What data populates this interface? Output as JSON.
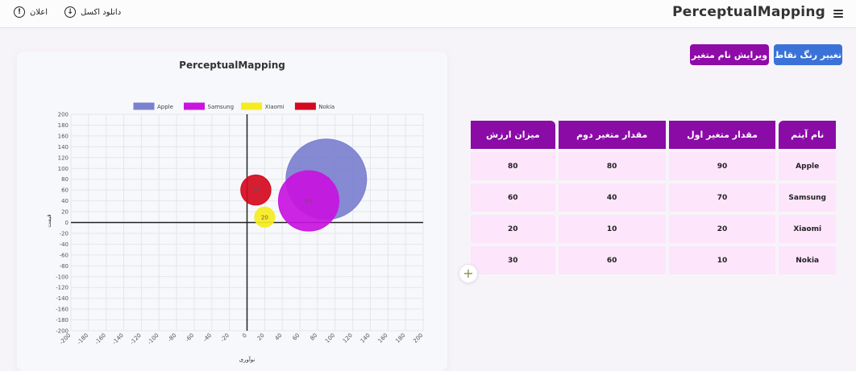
{
  "header": {
    "app_title": "PerceptualMapping",
    "download_label": "دانلود اکسل",
    "announcement_label": "اعلان"
  },
  "toolbar": {
    "change_color_label": "تغییر رنگ نقاط",
    "edit_variable_label": "ویرایش نام متغیر"
  },
  "table": {
    "headers": [
      "نام آیتم",
      "مقدار متغیر اول",
      "مقدار متغیر دوم",
      "میزان ارزش"
    ],
    "rows": [
      [
        "Apple",
        "90",
        "80",
        "80"
      ],
      [
        "Samsung",
        "70",
        "40",
        "60"
      ],
      [
        "Xiaomi",
        "20",
        "10",
        "20"
      ],
      [
        "Nokia",
        "10",
        "60",
        "30"
      ]
    ]
  },
  "colors": {
    "primary_purple": "#8a0ba6",
    "primary_blue": "#3a72d8",
    "table_cell": "#fde5fb"
  },
  "chart_data": {
    "type": "bubble",
    "title": "PerceptualMapping",
    "xlabel": "نوآوری",
    "ylabel": "قیمت",
    "xlim": [
      -200,
      200
    ],
    "ylim": [
      -200,
      200
    ],
    "x_ticks": [
      "-200",
      "-180",
      "-160",
      "-140",
      "-120",
      "-100",
      "-80",
      "-60",
      "-40",
      "-20",
      "0",
      "20",
      "40",
      "60",
      "80",
      "100",
      "120",
      "140",
      "160",
      "180",
      "200"
    ],
    "y_ticks": [
      "200",
      "180",
      "160",
      "140",
      "120",
      "100",
      "80",
      "60",
      "40",
      "20",
      "0",
      "-20",
      "-40",
      "-60",
      "-80",
      "-100",
      "-120",
      "-140",
      "-160",
      "-180",
      "-200"
    ],
    "grid": true,
    "legend_position": "top",
    "series": [
      {
        "name": "Apple",
        "x": 90,
        "y": 80,
        "r": 80,
        "color": "#7b80cf"
      },
      {
        "name": "Samsung",
        "x": 70,
        "y": 40,
        "r": 60,
        "color": "#c814e0"
      },
      {
        "name": "Xiaomi",
        "x": 20,
        "y": 10,
        "r": 20,
        "color": "#f5ec20"
      },
      {
        "name": "Nokia",
        "x": 10,
        "y": 60,
        "r": 30,
        "color": "#d40a1e"
      }
    ]
  }
}
